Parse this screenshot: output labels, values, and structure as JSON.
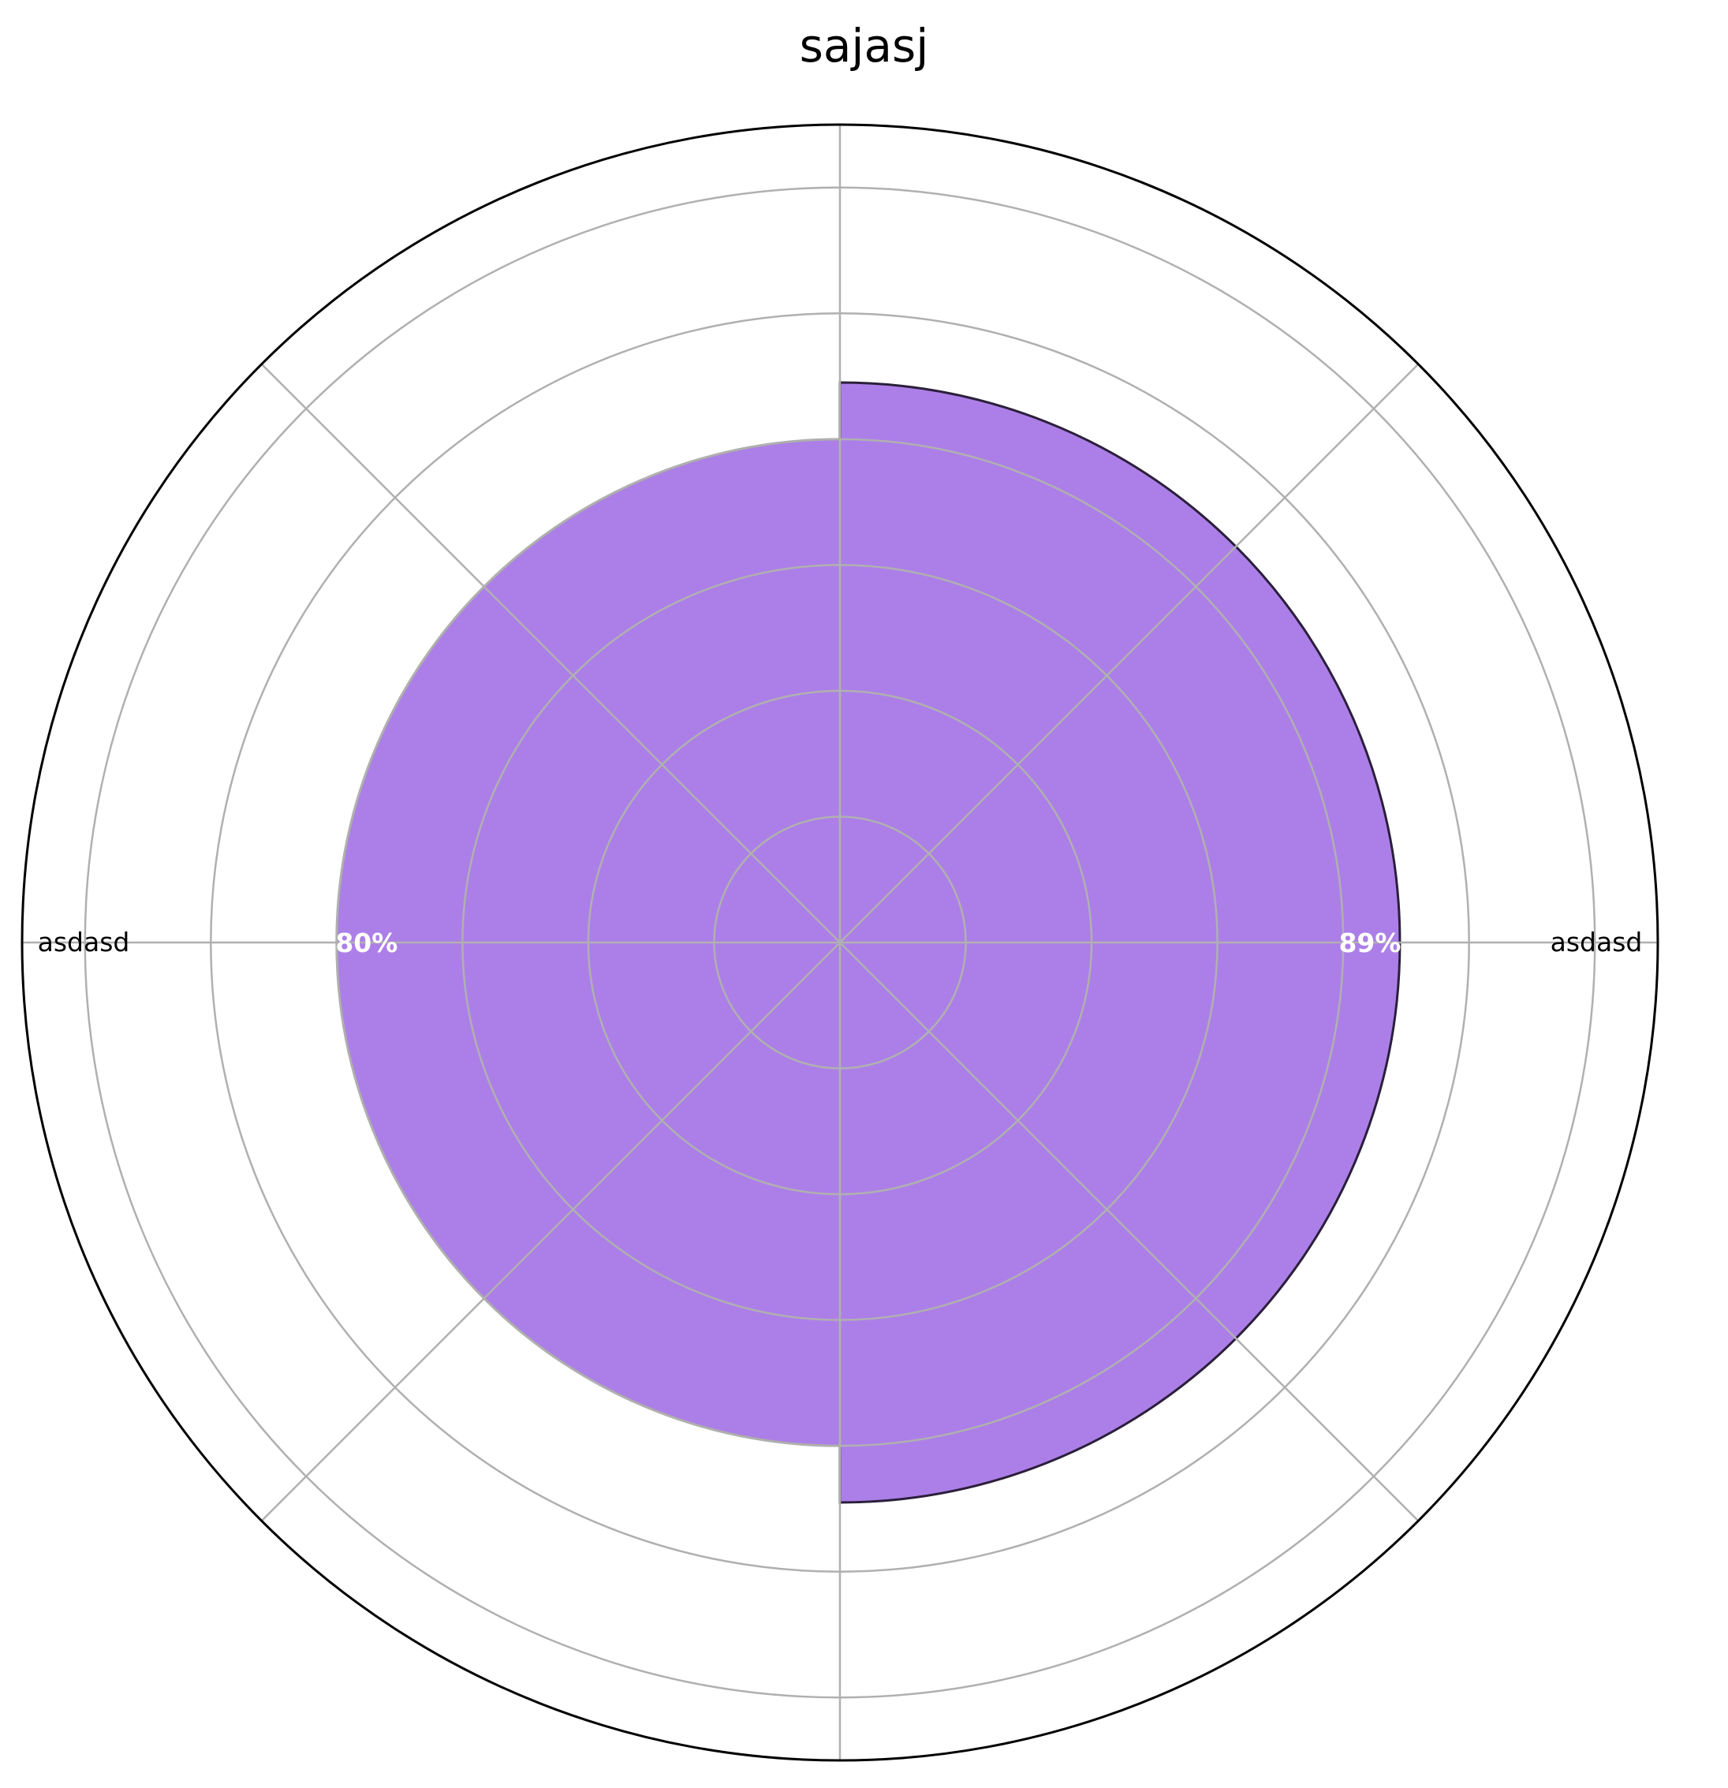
{
  "chart_data": {
    "type": "polar_bar",
    "title": "sajasj",
    "categories": [
      "asdasd",
      "asdasd"
    ],
    "values": [
      89,
      80
    ],
    "value_labels": [
      "89%",
      "80%"
    ],
    "theta_degrees": [
      0,
      180
    ],
    "rlim": [
      0,
      130
    ],
    "r_gridlines": [
      20,
      40,
      60,
      80,
      100,
      120
    ],
    "theta_gridlines_deg": [
      0,
      45,
      90,
      135,
      180,
      225,
      270,
      315
    ],
    "grid": true,
    "colors": {
      "bar_fill": "#ac7fe8",
      "bar_edge_primary": "#2b1f3a",
      "bar_edge_secondary": "#a0a0a0",
      "grid": "#b0b0b0",
      "outer_circle": "#000000",
      "value_label": "#ffffff"
    }
  }
}
